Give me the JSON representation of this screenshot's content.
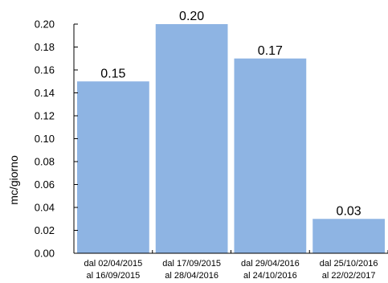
{
  "chart_data": {
    "type": "bar",
    "title": "",
    "xlabel": "",
    "ylabel": "mc/giorno",
    "ylim": [
      0,
      0.2
    ],
    "yticks": [
      "0.00",
      "0.02",
      "0.04",
      "0.06",
      "0.08",
      "0.10",
      "0.12",
      "0.14",
      "0.16",
      "0.18",
      "0.20"
    ],
    "categories": [
      [
        "dal 02/04/2015",
        "al 16/09/2015"
      ],
      [
        "dal 17/09/2015",
        "al 28/04/2016"
      ],
      [
        "dal 29/04/2016",
        "al 24/10/2016"
      ],
      [
        "dal 25/10/2016",
        "al 22/02/2017"
      ]
    ],
    "values": [
      0.15,
      0.2,
      0.17,
      0.03
    ],
    "value_labels": [
      "0.15",
      "0.20",
      "0.17",
      "0.03"
    ],
    "bar_color": "#8eb4e3",
    "axis_color": "#000000",
    "grid": false,
    "legend": "none"
  }
}
